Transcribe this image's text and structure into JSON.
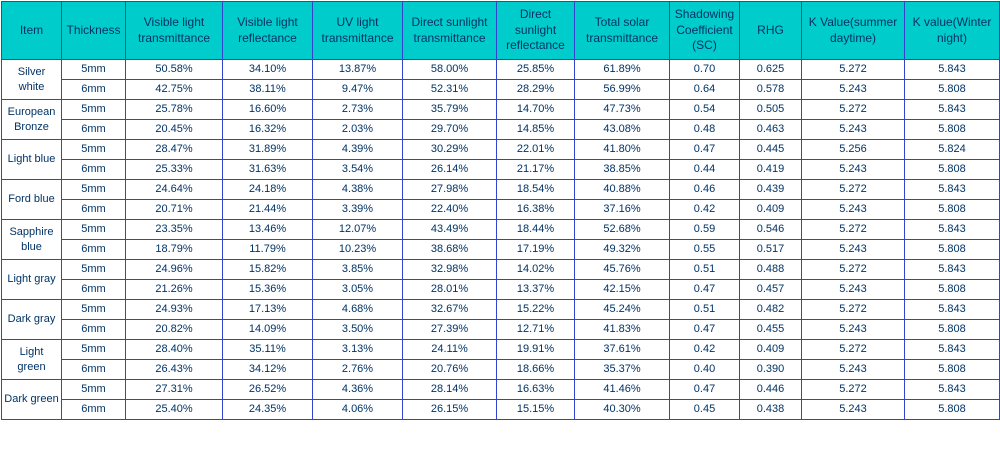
{
  "colors": {
    "header_bg": "#00cccc",
    "border": "#3344cc",
    "text": "#003366",
    "row_bg": "#ffffff"
  },
  "chart_data": {
    "type": "table",
    "columns": [
      {
        "key": "item",
        "label": "Item"
      },
      {
        "key": "thickness",
        "label": "Thickness"
      },
      {
        "key": "visible_light_transmittance",
        "label": "Visible light transmittance"
      },
      {
        "key": "visible_light_reflectance",
        "label": "Visible light reflectance"
      },
      {
        "key": "uv_light_transmittance",
        "label": "UV light transmittance"
      },
      {
        "key": "direct_sunlight_transmittance",
        "label": "Direct sunlight transmittance"
      },
      {
        "key": "direct_sunlight_reflectance",
        "label": "Direct sunlight reflectance"
      },
      {
        "key": "total_solar_transmittance",
        "label": "Total solar transmittance"
      },
      {
        "key": "shadowing_coefficient",
        "label": "Shadowing Coefficient (SC)"
      },
      {
        "key": "rhg",
        "label": "RHG"
      },
      {
        "key": "k_value_summer",
        "label": "K Value(summer daytime)"
      },
      {
        "key": "k_value_winter",
        "label": "K value(Winter night)"
      }
    ],
    "groups": [
      {
        "item": "Silver white",
        "rows": [
          {
            "thickness": "5mm",
            "values": [
              "50.58%",
              "34.10%",
              "13.87%",
              "58.00%",
              "25.85%",
              "61.89%",
              "0.70",
              "0.625",
              "5.272",
              "5.843"
            ]
          },
          {
            "thickness": "6mm",
            "values": [
              "42.75%",
              "38.11%",
              "9.47%",
              "52.31%",
              "28.29%",
              "56.99%",
              "0.64",
              "0.578",
              "5.243",
              "5.808"
            ]
          }
        ]
      },
      {
        "item": "European Bronze",
        "rows": [
          {
            "thickness": "5mm",
            "values": [
              "25.78%",
              "16.60%",
              "2.73%",
              "35.79%",
              "14.70%",
              "47.73%",
              "0.54",
              "0.505",
              "5.272",
              "5.843"
            ]
          },
          {
            "thickness": "6mm",
            "values": [
              "20.45%",
              "16.32%",
              "2.03%",
              "29.70%",
              "14.85%",
              "43.08%",
              "0.48",
              "0.463",
              "5.243",
              "5.808"
            ]
          }
        ]
      },
      {
        "item": "Light blue",
        "rows": [
          {
            "thickness": "5mm",
            "values": [
              "28.47%",
              "31.89%",
              "4.39%",
              "30.29%",
              "22.01%",
              "41.80%",
              "0.47",
              "0.445",
              "5.256",
              "5.824"
            ]
          },
          {
            "thickness": "6mm",
            "values": [
              "25.33%",
              "31.63%",
              "3.54%",
              "26.14%",
              "21.17%",
              "38.85%",
              "0.44",
              "0.419",
              "5.243",
              "5.808"
            ]
          }
        ]
      },
      {
        "item": "Ford blue",
        "rows": [
          {
            "thickness": "5mm",
            "values": [
              "24.64%",
              "24.18%",
              "4.38%",
              "27.98%",
              "18.54%",
              "40.88%",
              "0.46",
              "0.439",
              "5.272",
              "5.843"
            ]
          },
          {
            "thickness": "6mm",
            "values": [
              "20.71%",
              "21.44%",
              "3.39%",
              "22.40%",
              "16.38%",
              "37.16%",
              "0.42",
              "0.409",
              "5.243",
              "5.808"
            ]
          }
        ]
      },
      {
        "item": "Sapphire blue",
        "rows": [
          {
            "thickness": "5mm",
            "values": [
              "23.35%",
              "13.46%",
              "12.07%",
              "43.49%",
              "18.44%",
              "52.68%",
              "0.59",
              "0.546",
              "5.272",
              "5.843"
            ]
          },
          {
            "thickness": "6mm",
            "values": [
              "18.79%",
              "11.79%",
              "10.23%",
              "38.68%",
              "17.19%",
              "49.32%",
              "0.55",
              "0.517",
              "5.243",
              "5.808"
            ]
          }
        ]
      },
      {
        "item": "Light gray",
        "rows": [
          {
            "thickness": "5mm",
            "values": [
              "24.96%",
              "15.82%",
              "3.85%",
              "32.98%",
              "14.02%",
              "45.76%",
              "0.51",
              "0.488",
              "5.272",
              "5.843"
            ]
          },
          {
            "thickness": "6mm",
            "values": [
              "21.26%",
              "15.36%",
              "3.05%",
              "28.01%",
              "13.37%",
              "42.15%",
              "0.47",
              "0.457",
              "5.243",
              "5.808"
            ]
          }
        ]
      },
      {
        "item": "Dark gray",
        "rows": [
          {
            "thickness": "5mm",
            "values": [
              "24.93%",
              "17.13%",
              "4.68%",
              "32.67%",
              "15.22%",
              "45.24%",
              "0.51",
              "0.482",
              "5.272",
              "5.843"
            ]
          },
          {
            "thickness": "6mm",
            "values": [
              "20.82%",
              "14.09%",
              "3.50%",
              "27.39%",
              "12.71%",
              "41.83%",
              "0.47",
              "0.455",
              "5.243",
              "5.808"
            ]
          }
        ]
      },
      {
        "item": "Light green",
        "rows": [
          {
            "thickness": "5mm",
            "values": [
              "28.40%",
              "35.11%",
              "3.13%",
              "24.11%",
              "19.91%",
              "37.61%",
              "0.42",
              "0.409",
              "5.272",
              "5.843"
            ]
          },
          {
            "thickness": "6mm",
            "values": [
              "26.43%",
              "34.12%",
              "2.76%",
              "20.76%",
              "18.66%",
              "35.37%",
              "0.40",
              "0.390",
              "5.243",
              "5.808"
            ]
          }
        ]
      },
      {
        "item": "Dark green",
        "rows": [
          {
            "thickness": "5mm",
            "values": [
              "27.31%",
              "26.52%",
              "4.36%",
              "28.14%",
              "16.63%",
              "41.46%",
              "0.47",
              "0.446",
              "5.272",
              "5.843"
            ]
          },
          {
            "thickness": "6mm",
            "values": [
              "25.40%",
              "24.35%",
              "4.06%",
              "26.15%",
              "15.15%",
              "40.30%",
              "0.45",
              "0.438",
              "5.243",
              "5.808"
            ]
          }
        ]
      }
    ]
  }
}
